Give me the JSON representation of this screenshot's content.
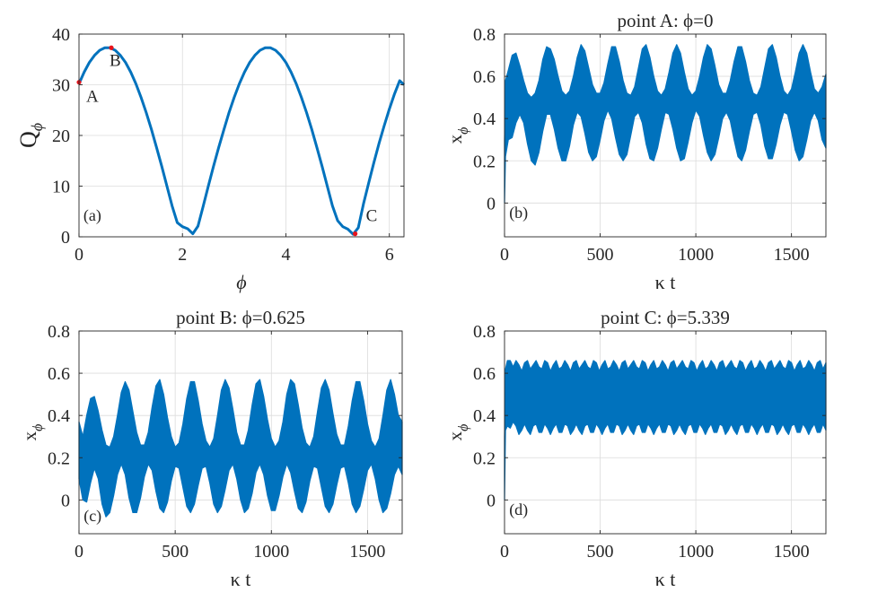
{
  "colors": {
    "line": "#0072BD",
    "marker": "#E8141C",
    "grid": "#DCDCDC",
    "axis": "#262626",
    "text": "#262626"
  },
  "chart_data": [
    {
      "id": "a",
      "type": "line",
      "title": "",
      "xlabel": "ϕ",
      "ylabel": "Q",
      "ylabel_sub": "ϕ",
      "xlim": [
        0,
        6.283
      ],
      "ylim": [
        0,
        40
      ],
      "xticks": [
        0,
        2,
        4,
        6
      ],
      "xtick_labels": [
        "0",
        "2",
        "4",
        "6"
      ],
      "yticks": [
        0,
        10,
        20,
        30,
        40
      ],
      "ytick_labels": [
        "0",
        "10",
        "20",
        "30",
        "40"
      ],
      "grid": true,
      "panel_label": "(a)",
      "series": [
        {
          "x": [
            0,
            0.1,
            0.2,
            0.3,
            0.4,
            0.5,
            0.6,
            0.7,
            0.8,
            0.9,
            1.0,
            1.1,
            1.2,
            1.3,
            1.4,
            1.5,
            1.6,
            1.7,
            1.8,
            1.9,
            2.0,
            2.1,
            2.2,
            2.3,
            2.4,
            2.5,
            2.6,
            2.7,
            2.8,
            2.9,
            3.0,
            3.1,
            3.2,
            3.3,
            3.4,
            3.5,
            3.6,
            3.7,
            3.8,
            3.9,
            4.0,
            4.1,
            4.2,
            4.3,
            4.4,
            4.5,
            4.6,
            4.7,
            4.8,
            4.9,
            5.0,
            5.1,
            5.2,
            5.3,
            5.4,
            5.5,
            5.6,
            5.7,
            5.8,
            5.9,
            6.0,
            6.1,
            6.2,
            6.283
          ],
          "y": [
            30.2,
            32.5,
            34.4,
            35.8,
            36.8,
            37.3,
            37.3,
            36.8,
            35.8,
            34.4,
            32.5,
            30.2,
            27.5,
            24.5,
            21.2,
            17.6,
            13.9,
            10.0,
            6.1,
            2.8,
            2.0,
            1.6,
            0.6,
            2.1,
            6.0,
            10.0,
            13.9,
            17.6,
            21.1,
            24.5,
            27.5,
            30.2,
            32.5,
            34.4,
            35.8,
            36.8,
            37.3,
            37.3,
            36.8,
            35.8,
            34.4,
            32.5,
            30.2,
            27.5,
            24.5,
            21.2,
            17.6,
            13.9,
            10.0,
            6.1,
            3.2,
            2.0,
            1.5,
            0.5,
            1.8,
            6.5,
            10.6,
            14.6,
            18.4,
            21.9,
            25.2,
            28.2,
            30.8,
            30.0
          ]
        }
      ],
      "points": [
        {
          "label": "A",
          "x": 0.0,
          "y": 30.5
        },
        {
          "label": "B",
          "x": 0.625,
          "y": 37.3
        },
        {
          "label": "C",
          "x": 5.339,
          "y": 0.6
        }
      ]
    },
    {
      "id": "b",
      "type": "area",
      "title": "point A: ϕ=0",
      "xlabel": "κ t",
      "ylabel": "x",
      "ylabel_sub": "ϕ",
      "xlim": [
        0,
        1680
      ],
      "ylim": [
        -0.16,
        0.8
      ],
      "xticks": [
        0,
        500,
        1000,
        1500
      ],
      "xtick_labels": [
        "0",
        "500",
        "1000",
        "1500"
      ],
      "yticks": [
        0,
        0.2,
        0.4,
        0.6,
        0.8
      ],
      "ytick_labels": [
        "0",
        "0.2",
        "0.4",
        "0.6",
        "0.8"
      ],
      "grid": true,
      "panel_label": "(b)",
      "envelope": {
        "t": [
          0,
          5,
          20,
          40,
          60,
          80,
          100,
          120,
          140,
          160,
          180,
          200,
          220,
          240,
          260,
          280,
          300,
          320,
          340,
          360,
          380,
          400,
          420,
          440,
          460,
          480,
          500,
          520,
          540,
          560,
          580,
          600,
          620,
          640,
          660,
          680,
          700,
          720,
          740,
          760,
          780,
          800,
          820,
          840,
          860,
          880,
          900,
          920,
          940,
          960,
          980,
          1000,
          1020,
          1040,
          1060,
          1080,
          1100,
          1120,
          1140,
          1160,
          1180,
          1200,
          1220,
          1240,
          1260,
          1280,
          1300,
          1320,
          1340,
          1360,
          1380,
          1400,
          1420,
          1440,
          1460,
          1480,
          1500,
          1520,
          1540,
          1560,
          1580,
          1600,
          1620,
          1640,
          1660,
          1680
        ],
        "upper": [
          0.3,
          0.58,
          0.63,
          0.7,
          0.71,
          0.65,
          0.58,
          0.52,
          0.5,
          0.52,
          0.58,
          0.68,
          0.74,
          0.73,
          0.68,
          0.6,
          0.53,
          0.51,
          0.53,
          0.6,
          0.69,
          0.75,
          0.72,
          0.64,
          0.56,
          0.52,
          0.52,
          0.57,
          0.66,
          0.74,
          0.74,
          0.67,
          0.58,
          0.52,
          0.51,
          0.55,
          0.64,
          0.73,
          0.75,
          0.69,
          0.6,
          0.53,
          0.51,
          0.54,
          0.62,
          0.71,
          0.75,
          0.71,
          0.62,
          0.54,
          0.51,
          0.53,
          0.6,
          0.69,
          0.75,
          0.73,
          0.65,
          0.56,
          0.52,
          0.52,
          0.58,
          0.67,
          0.74,
          0.74,
          0.67,
          0.58,
          0.52,
          0.51,
          0.55,
          0.64,
          0.73,
          0.75,
          0.69,
          0.6,
          0.53,
          0.51,
          0.54,
          0.62,
          0.71,
          0.75,
          0.71,
          0.62,
          0.54,
          0.52,
          0.55,
          0.61
        ],
        "lower": [
          0.0,
          0.22,
          0.3,
          0.31,
          0.38,
          0.42,
          0.38,
          0.28,
          0.2,
          0.18,
          0.24,
          0.34,
          0.42,
          0.42,
          0.35,
          0.26,
          0.2,
          0.2,
          0.27,
          0.37,
          0.43,
          0.41,
          0.33,
          0.24,
          0.2,
          0.22,
          0.3,
          0.39,
          0.44,
          0.4,
          0.31,
          0.23,
          0.2,
          0.23,
          0.32,
          0.41,
          0.43,
          0.38,
          0.28,
          0.21,
          0.2,
          0.26,
          0.35,
          0.43,
          0.42,
          0.35,
          0.26,
          0.2,
          0.21,
          0.29,
          0.38,
          0.44,
          0.41,
          0.32,
          0.24,
          0.2,
          0.23,
          0.31,
          0.4,
          0.43,
          0.39,
          0.3,
          0.22,
          0.2,
          0.25,
          0.34,
          0.42,
          0.43,
          0.37,
          0.27,
          0.21,
          0.21,
          0.28,
          0.37,
          0.43,
          0.42,
          0.34,
          0.25,
          0.2,
          0.22,
          0.3,
          0.39,
          0.43,
          0.39,
          0.3,
          0.26
        ]
      }
    },
    {
      "id": "c",
      "type": "area",
      "title": "point B: ϕ=0.625",
      "xlabel": "κ t",
      "ylabel": "x",
      "ylabel_sub": "ϕ",
      "xlim": [
        0,
        1680
      ],
      "ylim": [
        -0.16,
        0.8
      ],
      "xticks": [
        0,
        500,
        1000,
        1500
      ],
      "xtick_labels": [
        "0",
        "500",
        "1000",
        "1500"
      ],
      "yticks": [
        0,
        0.2,
        0.4,
        0.6,
        0.8
      ],
      "ytick_labels": [
        "0",
        "0.2",
        "0.4",
        "0.6",
        "0.8"
      ],
      "grid": true,
      "panel_label": "(c)",
      "envelope": {
        "t": [
          0,
          20,
          40,
          60,
          80,
          100,
          120,
          140,
          160,
          180,
          200,
          220,
          240,
          260,
          280,
          300,
          320,
          340,
          360,
          380,
          400,
          420,
          440,
          460,
          480,
          500,
          520,
          540,
          560,
          580,
          600,
          620,
          640,
          660,
          680,
          700,
          720,
          740,
          760,
          780,
          800,
          820,
          840,
          860,
          880,
          900,
          920,
          940,
          960,
          980,
          1000,
          1020,
          1040,
          1060,
          1080,
          1100,
          1120,
          1140,
          1160,
          1180,
          1200,
          1220,
          1240,
          1260,
          1280,
          1300,
          1320,
          1340,
          1360,
          1380,
          1400,
          1420,
          1440,
          1460,
          1480,
          1500,
          1520,
          1540,
          1560,
          1580,
          1600,
          1620,
          1640,
          1660,
          1680
        ],
        "upper": [
          0.37,
          0.3,
          0.4,
          0.48,
          0.49,
          0.42,
          0.33,
          0.26,
          0.25,
          0.3,
          0.4,
          0.51,
          0.56,
          0.52,
          0.42,
          0.32,
          0.26,
          0.26,
          0.32,
          0.44,
          0.54,
          0.57,
          0.5,
          0.39,
          0.3,
          0.25,
          0.27,
          0.36,
          0.48,
          0.56,
          0.56,
          0.47,
          0.36,
          0.28,
          0.25,
          0.29,
          0.4,
          0.52,
          0.57,
          0.53,
          0.43,
          0.32,
          0.26,
          0.26,
          0.33,
          0.45,
          0.55,
          0.57,
          0.49,
          0.38,
          0.29,
          0.25,
          0.28,
          0.37,
          0.5,
          0.57,
          0.55,
          0.45,
          0.34,
          0.27,
          0.25,
          0.3,
          0.42,
          0.53,
          0.57,
          0.52,
          0.41,
          0.31,
          0.26,
          0.26,
          0.35,
          0.47,
          0.56,
          0.56,
          0.47,
          0.36,
          0.28,
          0.25,
          0.29,
          0.4,
          0.52,
          0.57,
          0.5,
          0.4,
          0.37
        ],
        "lower": [
          0.1,
          0.0,
          -0.01,
          0.08,
          0.15,
          0.1,
          -0.02,
          -0.08,
          -0.06,
          0.02,
          0.12,
          0.17,
          0.12,
          0.01,
          -0.06,
          -0.06,
          0.01,
          0.11,
          0.17,
          0.14,
          0.04,
          -0.04,
          -0.06,
          -0.01,
          0.09,
          0.16,
          0.15,
          0.06,
          -0.03,
          -0.06,
          -0.02,
          0.07,
          0.15,
          0.16,
          0.08,
          -0.02,
          -0.06,
          -0.03,
          0.05,
          0.14,
          0.17,
          0.1,
          0.0,
          -0.06,
          -0.04,
          0.03,
          0.13,
          0.17,
          0.12,
          0.02,
          -0.05,
          -0.05,
          0.02,
          0.11,
          0.17,
          0.13,
          0.04,
          -0.04,
          -0.06,
          -0.01,
          0.09,
          0.16,
          0.15,
          0.06,
          -0.03,
          -0.06,
          -0.02,
          0.07,
          0.15,
          0.16,
          0.08,
          -0.02,
          -0.06,
          -0.03,
          0.05,
          0.14,
          0.17,
          0.1,
          0.0,
          -0.06,
          -0.04,
          0.03,
          0.12,
          0.16,
          0.12
        ]
      }
    },
    {
      "id": "d",
      "type": "area",
      "title": "point C: ϕ=5.339",
      "xlabel": "κ t",
      "ylabel": "x",
      "ylabel_sub": "ϕ",
      "xlim": [
        0,
        1680
      ],
      "ylim": [
        -0.16,
        0.8
      ],
      "xticks": [
        0,
        500,
        1000,
        1500
      ],
      "xtick_labels": [
        "0",
        "500",
        "1000",
        "1500"
      ],
      "yticks": [
        0,
        0.2,
        0.4,
        0.6,
        0.8
      ],
      "ytick_labels": [
        "0",
        "0.2",
        "0.4",
        "0.6",
        "0.8"
      ],
      "grid": true,
      "panel_label": "(d)",
      "envelope": {
        "t": [
          0,
          5,
          15,
          30,
          45,
          60,
          75,
          90,
          105,
          120,
          135,
          150,
          165,
          180,
          195,
          210,
          225,
          240,
          255,
          270,
          285,
          300,
          315,
          330,
          345,
          360,
          375,
          390,
          405,
          420,
          435,
          450,
          465,
          480,
          495,
          510,
          525,
          540,
          555,
          570,
          585,
          600,
          615,
          630,
          645,
          660,
          675,
          690,
          705,
          720,
          735,
          750,
          765,
          780,
          795,
          810,
          825,
          840,
          855,
          870,
          885,
          900,
          915,
          930,
          945,
          960,
          975,
          990,
          1005,
          1020,
          1035,
          1050,
          1065,
          1080,
          1095,
          1110,
          1125,
          1140,
          1155,
          1170,
          1185,
          1200,
          1215,
          1230,
          1245,
          1260,
          1275,
          1290,
          1305,
          1320,
          1335,
          1350,
          1365,
          1380,
          1395,
          1410,
          1425,
          1440,
          1455,
          1470,
          1485,
          1500,
          1515,
          1530,
          1545,
          1560,
          1575,
          1590,
          1605,
          1620,
          1635,
          1650,
          1665,
          1680
        ],
        "upper": [
          0.3,
          0.62,
          0.66,
          0.66,
          0.63,
          0.66,
          0.64,
          0.61,
          0.65,
          0.66,
          0.62,
          0.64,
          0.66,
          0.63,
          0.62,
          0.66,
          0.65,
          0.61,
          0.64,
          0.66,
          0.62,
          0.63,
          0.66,
          0.64,
          0.61,
          0.65,
          0.66,
          0.62,
          0.64,
          0.66,
          0.63,
          0.62,
          0.66,
          0.65,
          0.61,
          0.64,
          0.66,
          0.62,
          0.63,
          0.66,
          0.64,
          0.61,
          0.65,
          0.66,
          0.62,
          0.64,
          0.66,
          0.63,
          0.62,
          0.66,
          0.65,
          0.61,
          0.64,
          0.66,
          0.62,
          0.63,
          0.66,
          0.64,
          0.61,
          0.65,
          0.66,
          0.62,
          0.64,
          0.66,
          0.63,
          0.62,
          0.66,
          0.65,
          0.61,
          0.64,
          0.66,
          0.62,
          0.63,
          0.66,
          0.64,
          0.61,
          0.65,
          0.66,
          0.62,
          0.64,
          0.66,
          0.63,
          0.62,
          0.66,
          0.65,
          0.61,
          0.64,
          0.66,
          0.62,
          0.63,
          0.66,
          0.64,
          0.61,
          0.65,
          0.66,
          0.62,
          0.64,
          0.66,
          0.63,
          0.62,
          0.66,
          0.65,
          0.61,
          0.64,
          0.66,
          0.62,
          0.63,
          0.66,
          0.64,
          0.61,
          0.65,
          0.66,
          0.62,
          0.65
        ],
        "lower": [
          0.0,
          0.33,
          0.35,
          0.34,
          0.37,
          0.35,
          0.31,
          0.33,
          0.36,
          0.33,
          0.31,
          0.35,
          0.36,
          0.32,
          0.32,
          0.36,
          0.34,
          0.31,
          0.34,
          0.36,
          0.32,
          0.32,
          0.36,
          0.35,
          0.31,
          0.33,
          0.36,
          0.33,
          0.31,
          0.35,
          0.36,
          0.32,
          0.32,
          0.36,
          0.34,
          0.31,
          0.34,
          0.36,
          0.32,
          0.32,
          0.36,
          0.35,
          0.31,
          0.33,
          0.36,
          0.33,
          0.31,
          0.35,
          0.36,
          0.32,
          0.32,
          0.36,
          0.34,
          0.31,
          0.34,
          0.36,
          0.32,
          0.32,
          0.36,
          0.35,
          0.31,
          0.33,
          0.36,
          0.33,
          0.31,
          0.35,
          0.36,
          0.32,
          0.32,
          0.36,
          0.34,
          0.31,
          0.34,
          0.36,
          0.32,
          0.32,
          0.36,
          0.35,
          0.31,
          0.33,
          0.36,
          0.33,
          0.31,
          0.35,
          0.36,
          0.32,
          0.32,
          0.36,
          0.34,
          0.31,
          0.34,
          0.36,
          0.32,
          0.32,
          0.36,
          0.35,
          0.31,
          0.33,
          0.36,
          0.33,
          0.31,
          0.35,
          0.36,
          0.32,
          0.32,
          0.36,
          0.34,
          0.31,
          0.34,
          0.36,
          0.32,
          0.32,
          0.36,
          0.33
        ]
      }
    }
  ]
}
